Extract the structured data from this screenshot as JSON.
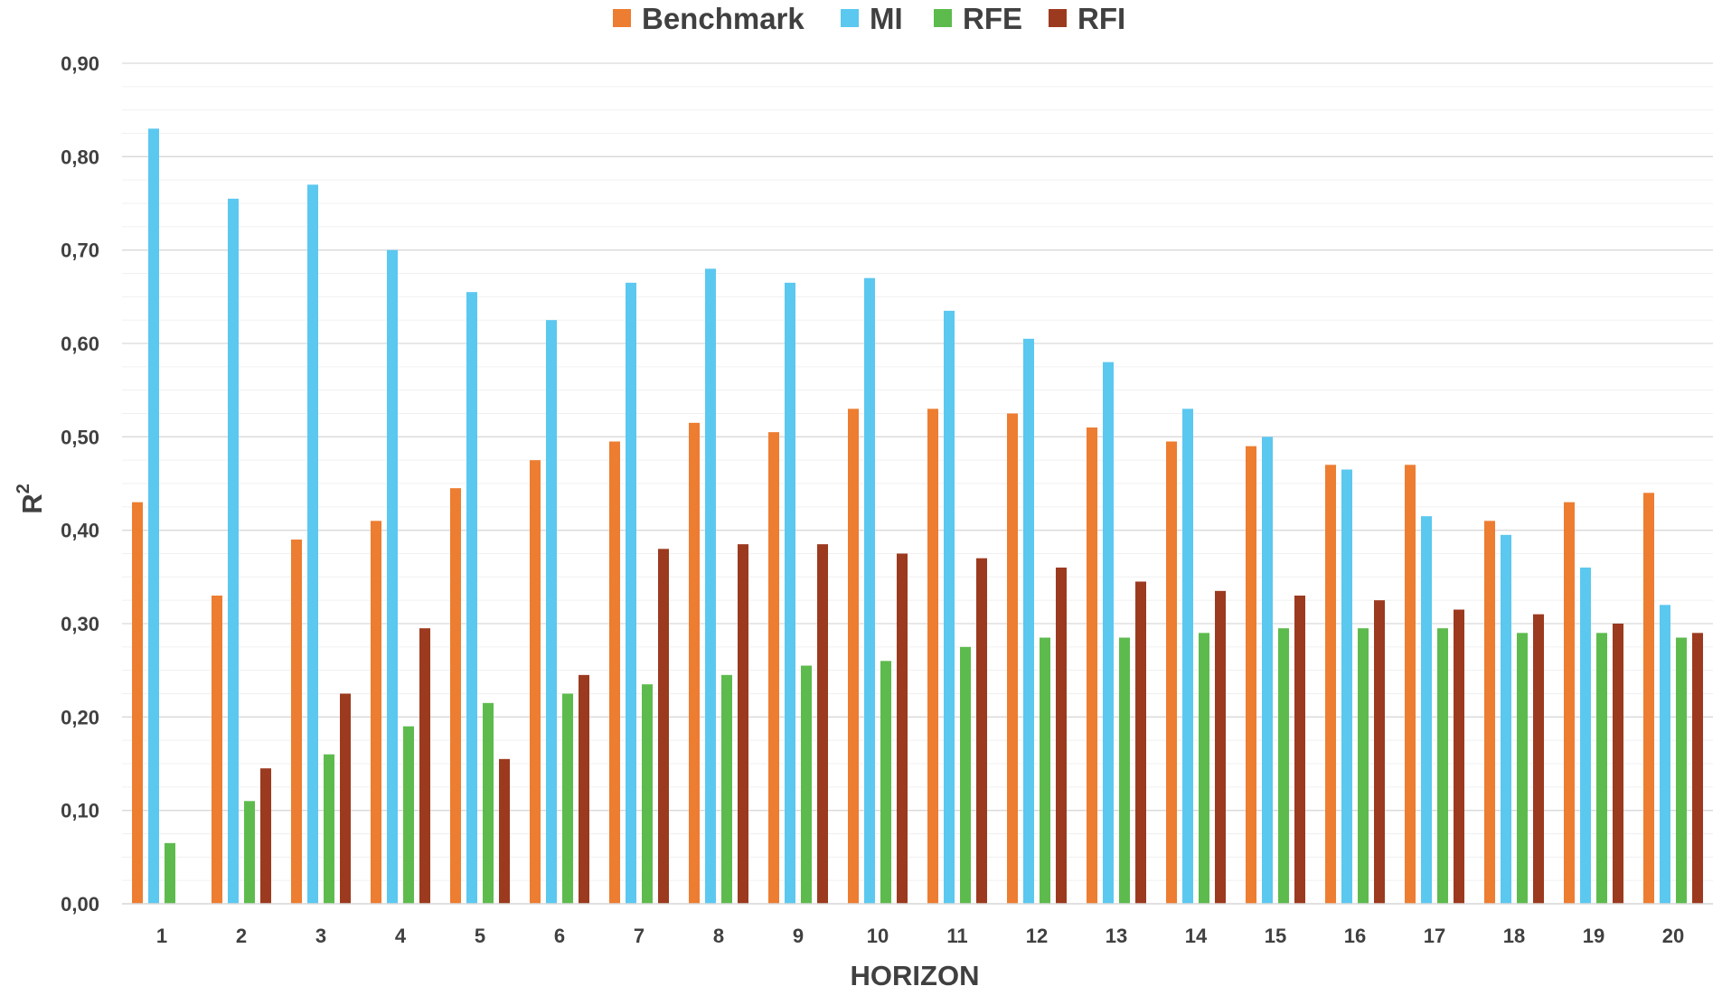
{
  "chart_data": {
    "type": "bar",
    "title": "",
    "xlabel": "HORIZON",
    "ylabel": "R",
    "ylabel_superscript": "2",
    "ylim": [
      0,
      0.9
    ],
    "y_ticks": [
      "0,00",
      "0,10",
      "0,20",
      "0,30",
      "0,40",
      "0,50",
      "0,60",
      "0,70",
      "0,80",
      "0,90"
    ],
    "grid": true,
    "legend_position": "top",
    "categories": [
      "1",
      "2",
      "3",
      "4",
      "5",
      "6",
      "7",
      "8",
      "9",
      "10",
      "11",
      "12",
      "13",
      "14",
      "15",
      "16",
      "17",
      "18",
      "19",
      "20"
    ],
    "series": [
      {
        "name": "Benchmark",
        "color": "#ED7D31",
        "values": [
          0.43,
          0.33,
          0.39,
          0.41,
          0.445,
          0.475,
          0.495,
          0.515,
          0.505,
          0.53,
          0.53,
          0.525,
          0.51,
          0.495,
          0.49,
          0.47,
          0.47,
          0.41,
          0.43,
          0.44
        ]
      },
      {
        "name": "MI",
        "color": "#5BC8F0",
        "values": [
          0.83,
          0.755,
          0.77,
          0.7,
          0.655,
          0.625,
          0.665,
          0.68,
          0.665,
          0.67,
          0.635,
          0.605,
          0.58,
          0.53,
          0.5,
          0.465,
          0.415,
          0.395,
          0.36,
          0.32
        ]
      },
      {
        "name": "RFE",
        "color": "#5DBB4D",
        "values": [
          0.065,
          0.11,
          0.16,
          0.19,
          0.215,
          0.225,
          0.235,
          0.245,
          0.255,
          0.26,
          0.275,
          0.285,
          0.285,
          0.29,
          0.295,
          0.295,
          0.295,
          0.29,
          0.29,
          0.285
        ]
      },
      {
        "name": "RFI",
        "color": "#9C3A1F",
        "values": [
          null,
          0.145,
          0.225,
          0.295,
          0.155,
          0.245,
          0.38,
          0.385,
          0.385,
          0.375,
          0.37,
          0.36,
          0.345,
          0.335,
          0.33,
          0.325,
          0.315,
          0.31,
          0.3,
          0.29
        ]
      }
    ]
  }
}
